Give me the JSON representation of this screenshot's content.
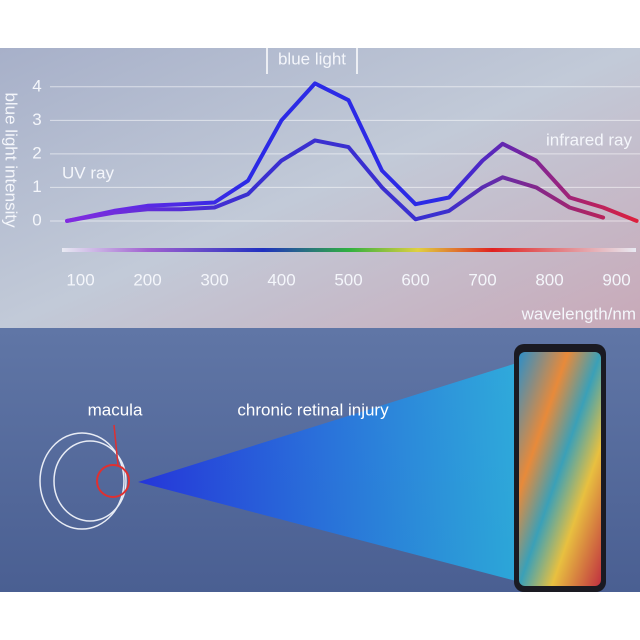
{
  "chart_data": {
    "type": "line",
    "y_label": "blue light intensity",
    "x_label": "wavelength/nm",
    "annotations": [
      "blue light",
      "UV ray",
      "infrared ray"
    ],
    "x": [
      80,
      150,
      200,
      250,
      300,
      350,
      400,
      450,
      500,
      550,
      600,
      650,
      700,
      730,
      780,
      830,
      880,
      930
    ],
    "series": [
      {
        "colors": [
          "#8a2be2",
          "#2c2ae6",
          "#2c2ae6",
          "#e0203a"
        ],
        "color": "#2c2ae6",
        "values": [
          0.0,
          0.3,
          0.45,
          0.5,
          0.55,
          1.2,
          3.0,
          4.1,
          3.6,
          1.5,
          0.5,
          0.7,
          1.8,
          2.3,
          1.8,
          0.7,
          0.4,
          0.0
        ]
      },
      {
        "colors": [
          "#8a2be2",
          "#3a2fd0",
          "#3a2fd0",
          "#d42040"
        ],
        "color": "#3a2fd0",
        "values": [
          0.0,
          0.25,
          0.35,
          0.35,
          0.4,
          0.8,
          1.8,
          2.4,
          2.2,
          1.0,
          0.05,
          0.3,
          1.0,
          1.3,
          1.0,
          0.4,
          0.1,
          null
        ]
      }
    ],
    "xlim": [
      50,
      935
    ],
    "ylim": [
      -0.3,
      4.5
    ],
    "xticks": [
      100,
      200,
      300,
      400,
      500,
      600,
      700,
      800,
      900
    ],
    "yticks": [
      0,
      1,
      2,
      3,
      4
    ],
    "grid": true
  },
  "diagram": {
    "labels": [
      "macula",
      "chronic retinal injury"
    ]
  }
}
